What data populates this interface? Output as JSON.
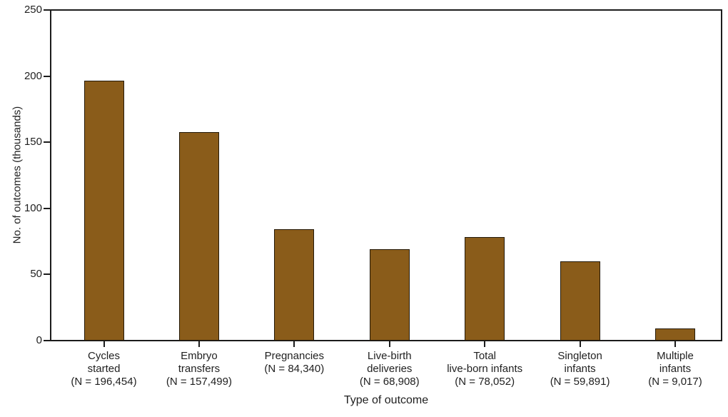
{
  "chart_data": {
    "type": "bar",
    "title": "",
    "xlabel": "Type of outcome",
    "ylabel": "No. of outcomes  (thousands)",
    "ylim": [
      0,
      250
    ],
    "yticks": [
      0,
      50,
      100,
      150,
      200,
      250
    ],
    "grid": false,
    "legend": "none",
    "categories": [
      "Cycles started",
      "Embryo transfers",
      "Pregnancies",
      "Live-birth deliveries",
      "Total live-born infants",
      "Singleton infants",
      "Multiple infants"
    ],
    "category_label_lines": [
      [
        "Cycles",
        "started",
        "(N = 196,454)"
      ],
      [
        "Embryo",
        "transfers",
        "(N = 157,499)"
      ],
      [
        "Pregnancies",
        "(N = 84,340)"
      ],
      [
        "Live-birth",
        "deliveries",
        "(N = 68,908)"
      ],
      [
        "Total",
        "live-born infants",
        "(N = 78,052)"
      ],
      [
        "Singleton",
        "infants",
        "(N = 59,891)"
      ],
      [
        "Multiple",
        "infants",
        "(N = 9,017)"
      ]
    ],
    "values": [
      196.454,
      157.499,
      84.34,
      68.908,
      78.052,
      59.891,
      9.017
    ],
    "n_counts": [
      196454,
      157499,
      84340,
      68908,
      78052,
      59891,
      9017
    ],
    "colors": {
      "bar_fill": "#8A5C1A",
      "bar_border": "#241A0A",
      "axis": "#1C1C1C",
      "text": "#1F1F1F",
      "background": "#FFFFFF"
    }
  }
}
